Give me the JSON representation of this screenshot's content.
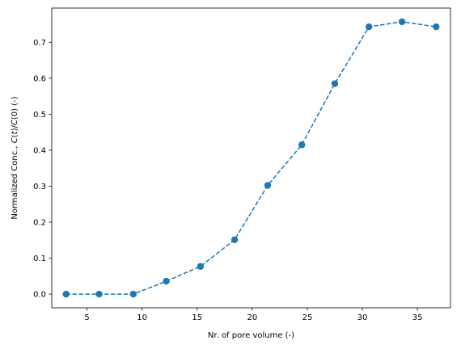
{
  "chart_data": {
    "type": "line",
    "xlabel": "Nr. of pore volume (-)",
    "ylabel": {
      "prefix": "Normalized Conc., ",
      "c1": "C",
      "t": "t",
      "mid": ")/",
      "c2": "C",
      "suffix": "(0) (-)"
    },
    "xlim": [
      1.8,
      38.0
    ],
    "ylim": [
      -0.038,
      0.795
    ],
    "xticks": [
      5,
      10,
      15,
      20,
      25,
      30,
      35
    ],
    "yticks": [
      0.0,
      0.1,
      0.2,
      0.3,
      0.4,
      0.5,
      0.6,
      0.7
    ],
    "grid": false,
    "line_style": "dashed",
    "marker": "circle",
    "color": "#1f77b4",
    "series": [
      {
        "x": [
          3.1,
          6.1,
          9.2,
          12.2,
          15.3,
          18.4,
          21.4,
          24.5,
          27.5,
          30.6,
          33.6,
          36.7
        ],
        "y": [
          0.0,
          0.0,
          0.0,
          0.036,
          0.077,
          0.151,
          0.302,
          0.415,
          0.585,
          0.743,
          0.757,
          0.743
        ]
      }
    ]
  }
}
